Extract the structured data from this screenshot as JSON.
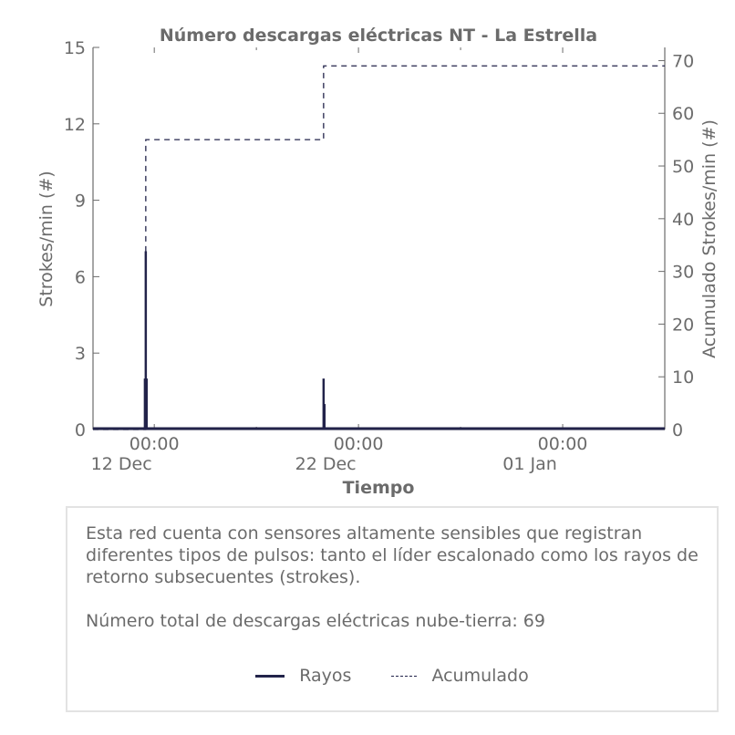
{
  "chart_data": {
    "type": "line",
    "title": "Número descargas eléctricas NT - La Estrella",
    "xlabel": "Tiempo",
    "ylabel_left": "Strokes/min (#)",
    "ylabel_right": "Acumulado Strokes/min (#)",
    "x_range": [
      "2015-12-09",
      "2016-01-06"
    ],
    "ylim_left": [
      0,
      15
    ],
    "ylim_right": [
      0,
      72.5
    ],
    "yticks_left": [
      "0",
      "3",
      "6",
      "9",
      "12",
      "15"
    ],
    "yticks_right": [
      "0",
      "10",
      "20",
      "30",
      "40",
      "50",
      "60",
      "70"
    ],
    "x_major_ticks": [
      {
        "date": "2015-12-12",
        "line1": "00:00",
        "line2": "12 Dec"
      },
      {
        "date": "2015-12-22",
        "line1": "00:00",
        "line2": "22 Dec"
      },
      {
        "date": "2016-01-01",
        "line1": "00:00",
        "line2": "01 Jan"
      }
    ],
    "x_minor_ticks": [
      "2015-12-17",
      "2015-12-27",
      "2016-01-06"
    ],
    "grid": false,
    "series": [
      {
        "name": "Rayos",
        "style": "solid",
        "color": "#22234a",
        "points": [
          {
            "x": "2015-12-11T14:00",
            "y": 7
          },
          {
            "x": "2015-12-11T13:00",
            "y": 2
          },
          {
            "x": "2015-12-11T15:00",
            "y": 2
          },
          {
            "x": "2015-12-20T07:00",
            "y": 2
          },
          {
            "x": "2015-12-20T08:00",
            "y": 1
          }
        ]
      },
      {
        "name": "Acumulado",
        "style": "dashed",
        "color": "#22234a",
        "steps": [
          {
            "x": "2015-12-11T14:00",
            "y": 55
          },
          {
            "x": "2015-12-20T07:00",
            "y": 69
          }
        ]
      }
    ]
  },
  "info": {
    "description": "Esta red cuenta con sensores altamente sensibles que registran diferentes tipos de pulsos: tanto el líder escalonado como los rayos de retorno subsecuentes (strokes).",
    "total_label": "Número total de descargas eléctricas nube-tierra: 69"
  },
  "legend": {
    "rayos": "Rayos",
    "acumulado": "Acumulado"
  }
}
